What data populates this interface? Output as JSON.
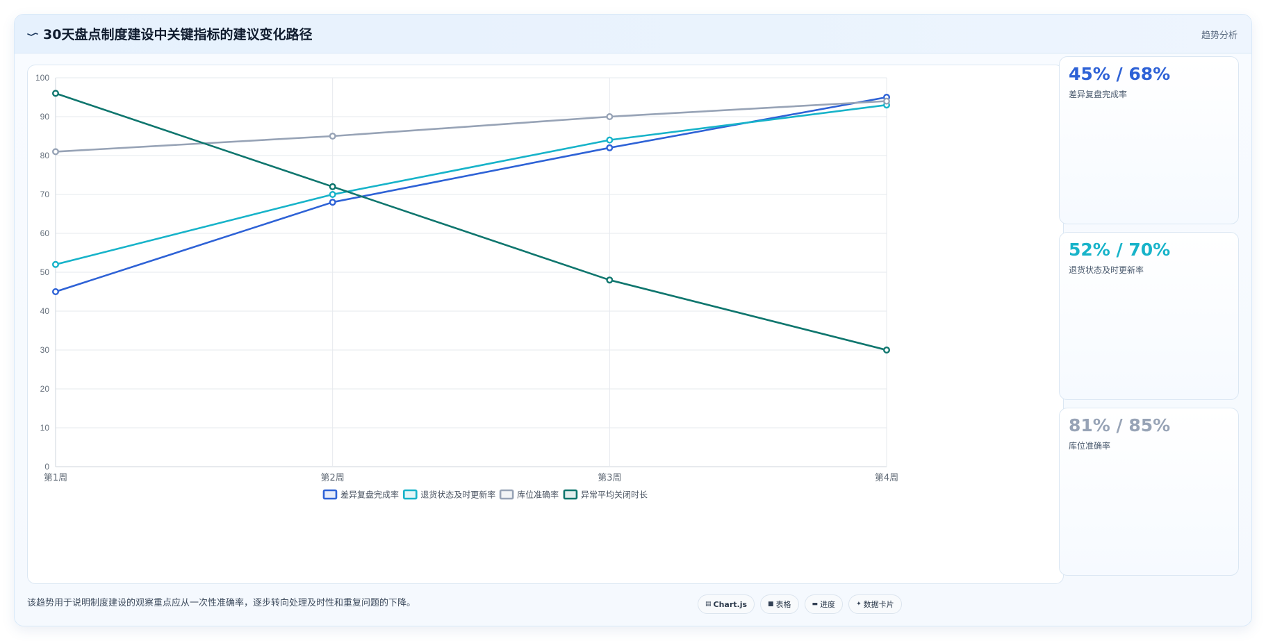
{
  "header": {
    "icon": "trend-line-icon",
    "title": "30天盘点制度建设中关键指标的建议变化路径",
    "tag": "趋势分析"
  },
  "chart_data": {
    "type": "line",
    "categories": [
      "第1周",
      "第2周",
      "第3周",
      "第4周"
    ],
    "ylim": [
      0,
      100
    ],
    "yticks": [
      0,
      10,
      20,
      30,
      40,
      50,
      60,
      70,
      80,
      90,
      100
    ],
    "grid": true,
    "legend_position": "bottom",
    "series": [
      {
        "name": "差异复盘完成率",
        "color": "#2e62d6",
        "values": [
          45,
          68,
          82,
          95
        ]
      },
      {
        "name": "退货状态及时更新率",
        "color": "#17b3c9",
        "values": [
          52,
          70,
          84,
          93
        ]
      },
      {
        "name": "库位准确率",
        "color": "#97a3b6",
        "values": [
          81,
          85,
          90,
          94
        ]
      },
      {
        "name": "异常平均关闭时长",
        "color": "#0f766e",
        "values": [
          96,
          72,
          48,
          30
        ]
      }
    ]
  },
  "stats": [
    {
      "value": "45% / 68%",
      "label": "差异复盘完成率",
      "color": "#2e62d6"
    },
    {
      "value": "52% / 70%",
      "label": "退货状态及时更新率",
      "color": "#17b3c9"
    },
    {
      "value": "81% / 85%",
      "label": "库位准确率",
      "color": "#97a3b6"
    }
  ],
  "footnote": "该趋势用于说明制度建设的观察重点应从一次性准确率，逐步转向处理及时性和重复问题的下降。",
  "chips": [
    {
      "icon": "chart-icon",
      "label": "Chart.js"
    },
    {
      "icon": "table-icon",
      "label": "表格"
    },
    {
      "icon": "progress-icon",
      "label": "进度"
    },
    {
      "icon": "card-icon",
      "label": "数据卡片"
    }
  ]
}
